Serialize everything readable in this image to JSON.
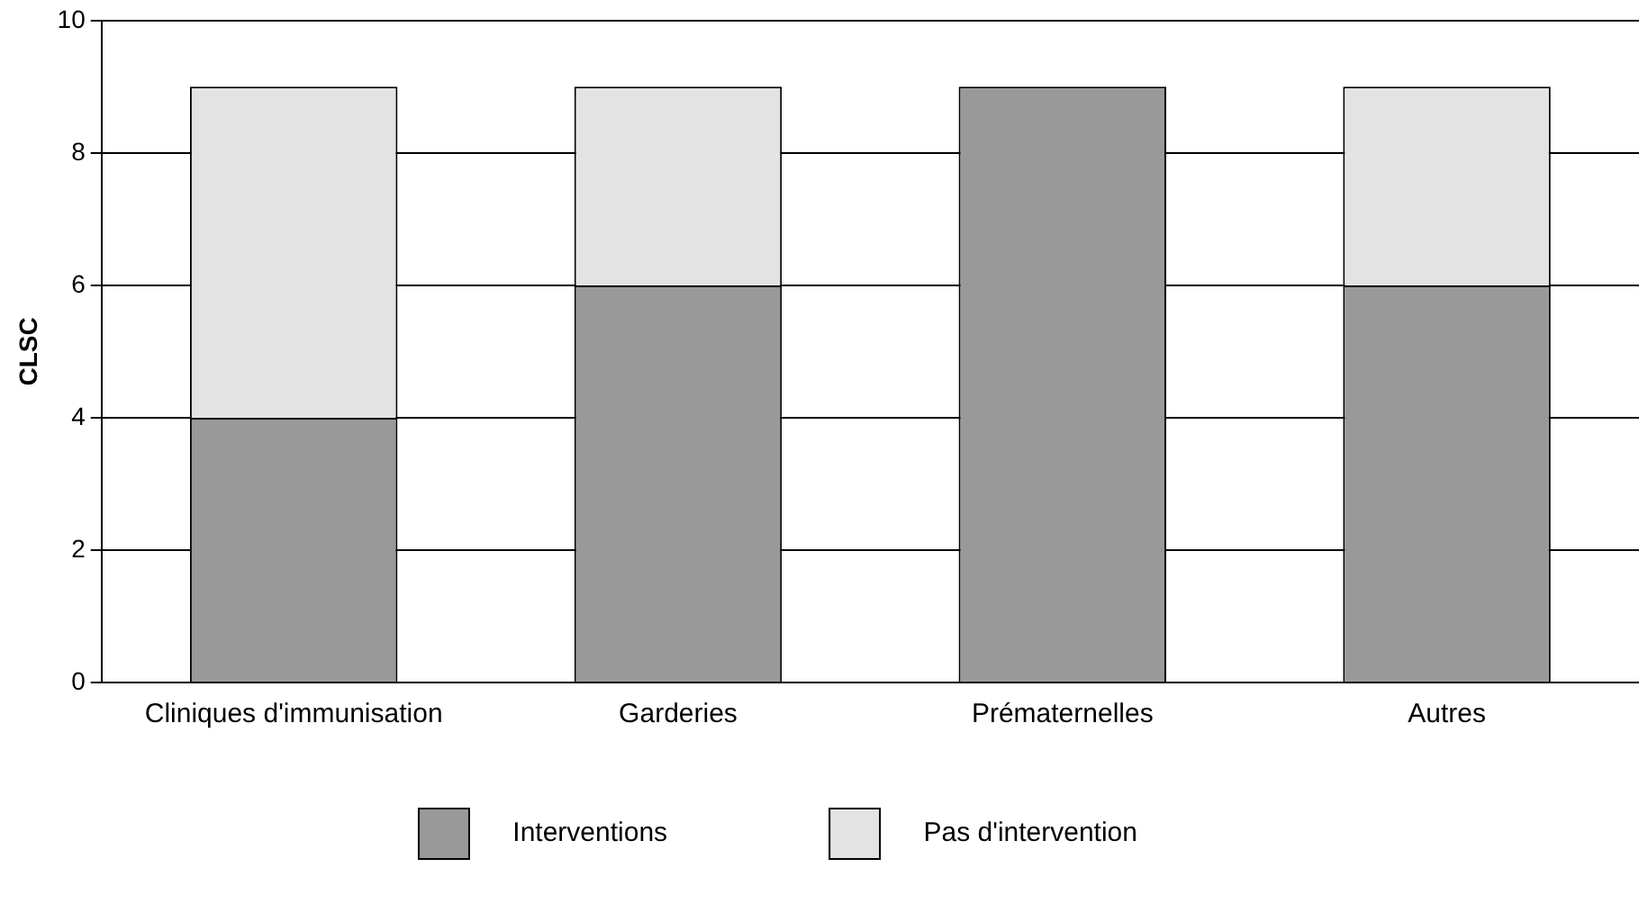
{
  "chart_data": {
    "type": "bar",
    "ylabel": "CLSC",
    "categories": [
      "Cliniques d'immunisation",
      "Garderies",
      "Prématernelles",
      "Autres"
    ],
    "series": [
      {
        "name": "Interventions",
        "color": "#999999",
        "values": [
          4,
          6,
          9,
          6
        ]
      },
      {
        "name": "Pas d'intervention",
        "color": "#e3e3e3",
        "values": [
          5,
          3,
          0,
          3
        ]
      }
    ],
    "stacked": true,
    "ylim": [
      0,
      10
    ],
    "yticks": [
      0,
      2,
      4,
      6,
      8,
      10
    ],
    "grid": "y",
    "legend": "bottom"
  }
}
